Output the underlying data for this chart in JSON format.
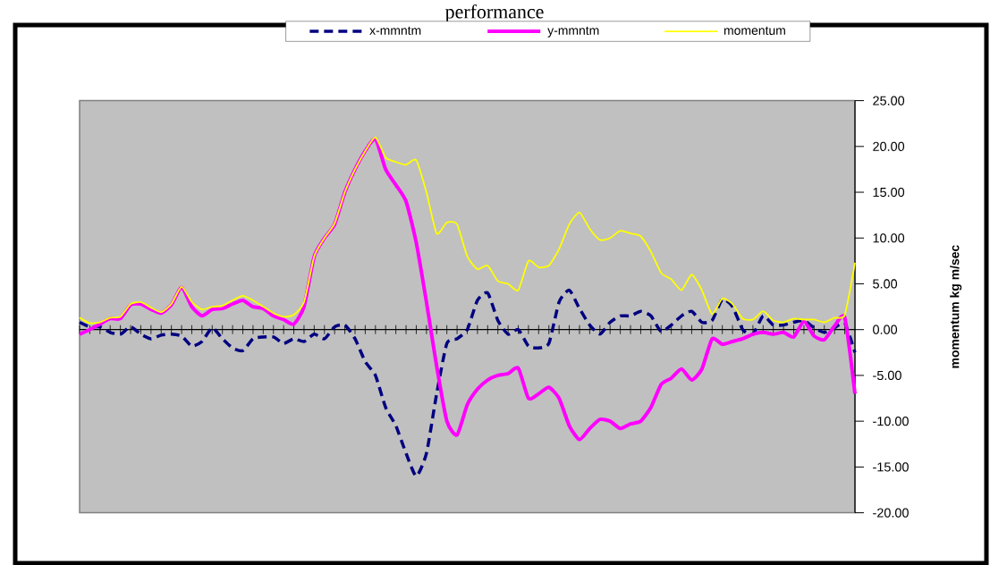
{
  "chart_data": {
    "type": "line",
    "title": "performance",
    "ylabel": "momentum kg m/sec",
    "categories": [
      null,
      null,
      null,
      null,
      null,
      null,
      null,
      null,
      null,
      null,
      null,
      null,
      null,
      null,
      null,
      null,
      null,
      null,
      null,
      null,
      null,
      null,
      null,
      null,
      null,
      null,
      null,
      null,
      null,
      null,
      null,
      null,
      null,
      null,
      null,
      null,
      null,
      null,
      null,
      null,
      null,
      null,
      null,
      null,
      null,
      null,
      null,
      null,
      null,
      null,
      null,
      null,
      null,
      null,
      null,
      null,
      null,
      null,
      null,
      null,
      null,
      null,
      null,
      null,
      null,
      null,
      null,
      null,
      null,
      null,
      null,
      null,
      null,
      null,
      null,
      null,
      null
    ],
    "series": [
      {
        "name": "x-mmntm",
        "color": "#000080",
        "line_style": "dashed",
        "values": [
          0.8,
          0.3,
          0.3,
          -0.3,
          -0.5,
          0.3,
          -0.5,
          -1.0,
          -0.6,
          -0.5,
          -0.7,
          -1.8,
          -1.3,
          0.2,
          -1.0,
          -2.0,
          -2.3,
          -1.0,
          -0.8,
          -0.8,
          -1.5,
          -1.0,
          -1.3,
          -0.5,
          -1.0,
          0.3,
          0.5,
          -1.0,
          -3.5,
          -5.0,
          -8.5,
          -10.5,
          -13.5,
          -16.0,
          -13.5,
          -7.0,
          -1.5,
          -1.0,
          0.0,
          3.2,
          4.0,
          1.0,
          -0.5,
          0.0,
          -1.8,
          -2.0,
          -1.5,
          3.0,
          4.3,
          2.3,
          0.5,
          -0.5,
          0.8,
          1.5,
          1.5,
          2.0,
          1.5,
          -0.2,
          0.5,
          1.5,
          2.0,
          0.8,
          1.0,
          3.3,
          2.5,
          0.0,
          -0.5,
          1.5,
          0.5,
          0.5,
          0.8,
          1.0,
          0.2,
          -0.3,
          0.2,
          0.7,
          -2.5
        ]
      },
      {
        "name": "y-mmntm",
        "color": "#ff00ff",
        "line_style": "solid",
        "values": [
          -0.5,
          0.0,
          0.6,
          1.2,
          1.2,
          2.7,
          2.8,
          2.2,
          1.8,
          2.7,
          4.6,
          2.5,
          1.5,
          2.2,
          2.3,
          2.8,
          3.2,
          2.5,
          2.3,
          1.5,
          1.1,
          0.6,
          2.5,
          8.0,
          10.0,
          11.5,
          15.0,
          17.5,
          19.5,
          20.8,
          17.5,
          15.8,
          14.0,
          9.5,
          3.0,
          -4.0,
          -10.0,
          -11.5,
          -8.2,
          -6.5,
          -5.5,
          -5.0,
          -4.8,
          -4.2,
          -7.5,
          -7.0,
          -6.3,
          -7.5,
          -10.5,
          -12.0,
          -10.8,
          -9.8,
          -10.0,
          -10.8,
          -10.3,
          -10.0,
          -8.5,
          -6.0,
          -5.3,
          -4.3,
          -5.5,
          -4.3,
          -1.0,
          -1.6,
          -1.3,
          -1.0,
          -0.5,
          -0.3,
          -0.5,
          -0.3,
          -0.8,
          0.9,
          -0.7,
          -1.1,
          0.4,
          1.3,
          -7.0
        ]
      },
      {
        "name": "momentum",
        "color": "#ffff00",
        "line_style": "solid",
        "values": [
          1.3,
          0.7,
          0.8,
          1.3,
          1.4,
          2.8,
          3.0,
          2.4,
          1.9,
          2.8,
          4.7,
          3.0,
          2.2,
          2.5,
          2.6,
          3.2,
          3.7,
          3.2,
          2.5,
          1.8,
          1.4,
          1.6,
          3.0,
          8.0,
          10.0,
          11.6,
          15.0,
          17.5,
          19.5,
          21.0,
          18.8,
          18.3,
          18.0,
          18.5,
          15.0,
          10.5,
          11.7,
          11.5,
          8.0,
          6.6,
          7.0,
          5.3,
          5.0,
          4.3,
          7.5,
          6.8,
          7.0,
          8.8,
          11.5,
          12.8,
          11.0,
          9.8,
          10.0,
          10.8,
          10.5,
          10.2,
          8.5,
          6.2,
          5.5,
          4.3,
          6.0,
          4.3,
          1.7,
          3.4,
          2.8,
          1.2,
          1.1,
          2.0,
          1.0,
          0.8,
          1.2,
          1.1,
          1.1,
          0.8,
          1.3,
          1.6,
          7.3
        ]
      }
    ],
    "ylim": [
      -20,
      25
    ],
    "yticks": [
      {
        "value": -20,
        "label": "-20.00"
      },
      {
        "value": -15,
        "label": "-15.00"
      },
      {
        "value": -10,
        "label": "-10.00"
      },
      {
        "value": -5,
        "label": "-5.00"
      },
      {
        "value": 0,
        "label": "0.00"
      },
      {
        "value": 5,
        "label": "5.00"
      },
      {
        "value": 10,
        "label": "10.00"
      },
      {
        "value": 15,
        "label": "15.00"
      },
      {
        "value": 20,
        "label": "20.00"
      },
      {
        "value": 25,
        "label": "25.00"
      }
    ],
    "legend": "top",
    "marker": "none"
  }
}
